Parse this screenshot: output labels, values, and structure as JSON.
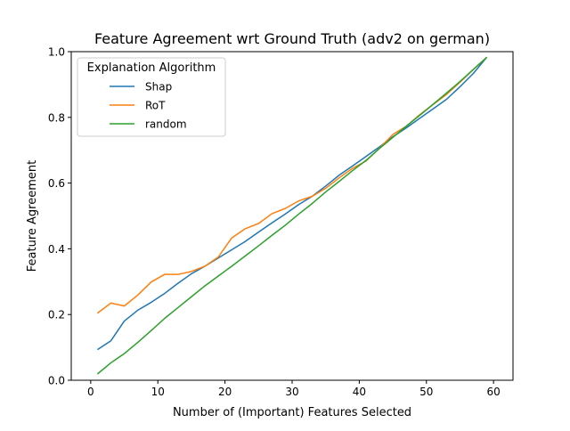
{
  "chart_data": {
    "type": "line",
    "title": "Feature Agreement wrt Ground Truth (adv2 on german)",
    "xlabel": "Number of (Important) Features Selected",
    "ylabel": "Feature Agreement",
    "xlim": [
      -2.9,
      62.9
    ],
    "ylim": [
      0,
      1.0
    ],
    "xticks": [
      0,
      10,
      20,
      30,
      40,
      50,
      60
    ],
    "yticks": [
      0.0,
      0.2,
      0.4,
      0.6,
      0.8,
      1.0
    ],
    "xtick_labels": [
      "0",
      "10",
      "20",
      "30",
      "40",
      "50",
      "60"
    ],
    "ytick_labels": [
      "0.0",
      "0.2",
      "0.4",
      "0.6",
      "0.8",
      "1.0"
    ],
    "grid": false,
    "legend": {
      "title": "Explanation Algorithm",
      "placement": "top-left"
    },
    "x": [
      1,
      3,
      5,
      7,
      9,
      11,
      13,
      15,
      17,
      19,
      21,
      23,
      25,
      27,
      29,
      31,
      33,
      35,
      37,
      39,
      41,
      43,
      45,
      47,
      49,
      51,
      53,
      55,
      57,
      59
    ],
    "series": [
      {
        "name": "Shap",
        "color": "#1f77b4",
        "values": [
          0.093,
          0.12,
          0.18,
          0.213,
          0.237,
          0.264,
          0.295,
          0.324,
          0.347,
          0.372,
          0.397,
          0.422,
          0.451,
          0.479,
          0.506,
          0.535,
          0.56,
          0.591,
          0.624,
          0.652,
          0.681,
          0.71,
          0.741,
          0.768,
          0.797,
          0.826,
          0.855,
          0.893,
          0.934,
          0.983
        ]
      },
      {
        "name": "RoT",
        "color": "#ff7f0e",
        "values": [
          0.204,
          0.235,
          0.226,
          0.259,
          0.299,
          0.322,
          0.322,
          0.331,
          0.347,
          0.375,
          0.433,
          0.461,
          0.477,
          0.507,
          0.523,
          0.546,
          0.56,
          0.584,
          0.616,
          0.645,
          0.667,
          0.706,
          0.748,
          0.773,
          0.808,
          0.839,
          0.87,
          0.907,
          0.946,
          0.983
        ]
      },
      {
        "name": "random",
        "color": "#2ca02c",
        "values": [
          0.019,
          0.053,
          0.081,
          0.115,
          0.151,
          0.188,
          0.221,
          0.254,
          0.287,
          0.317,
          0.347,
          0.378,
          0.409,
          0.441,
          0.472,
          0.506,
          0.538,
          0.573,
          0.605,
          0.638,
          0.669,
          0.705,
          0.739,
          0.773,
          0.806,
          0.84,
          0.874,
          0.909,
          0.946,
          0.983
        ]
      }
    ]
  }
}
